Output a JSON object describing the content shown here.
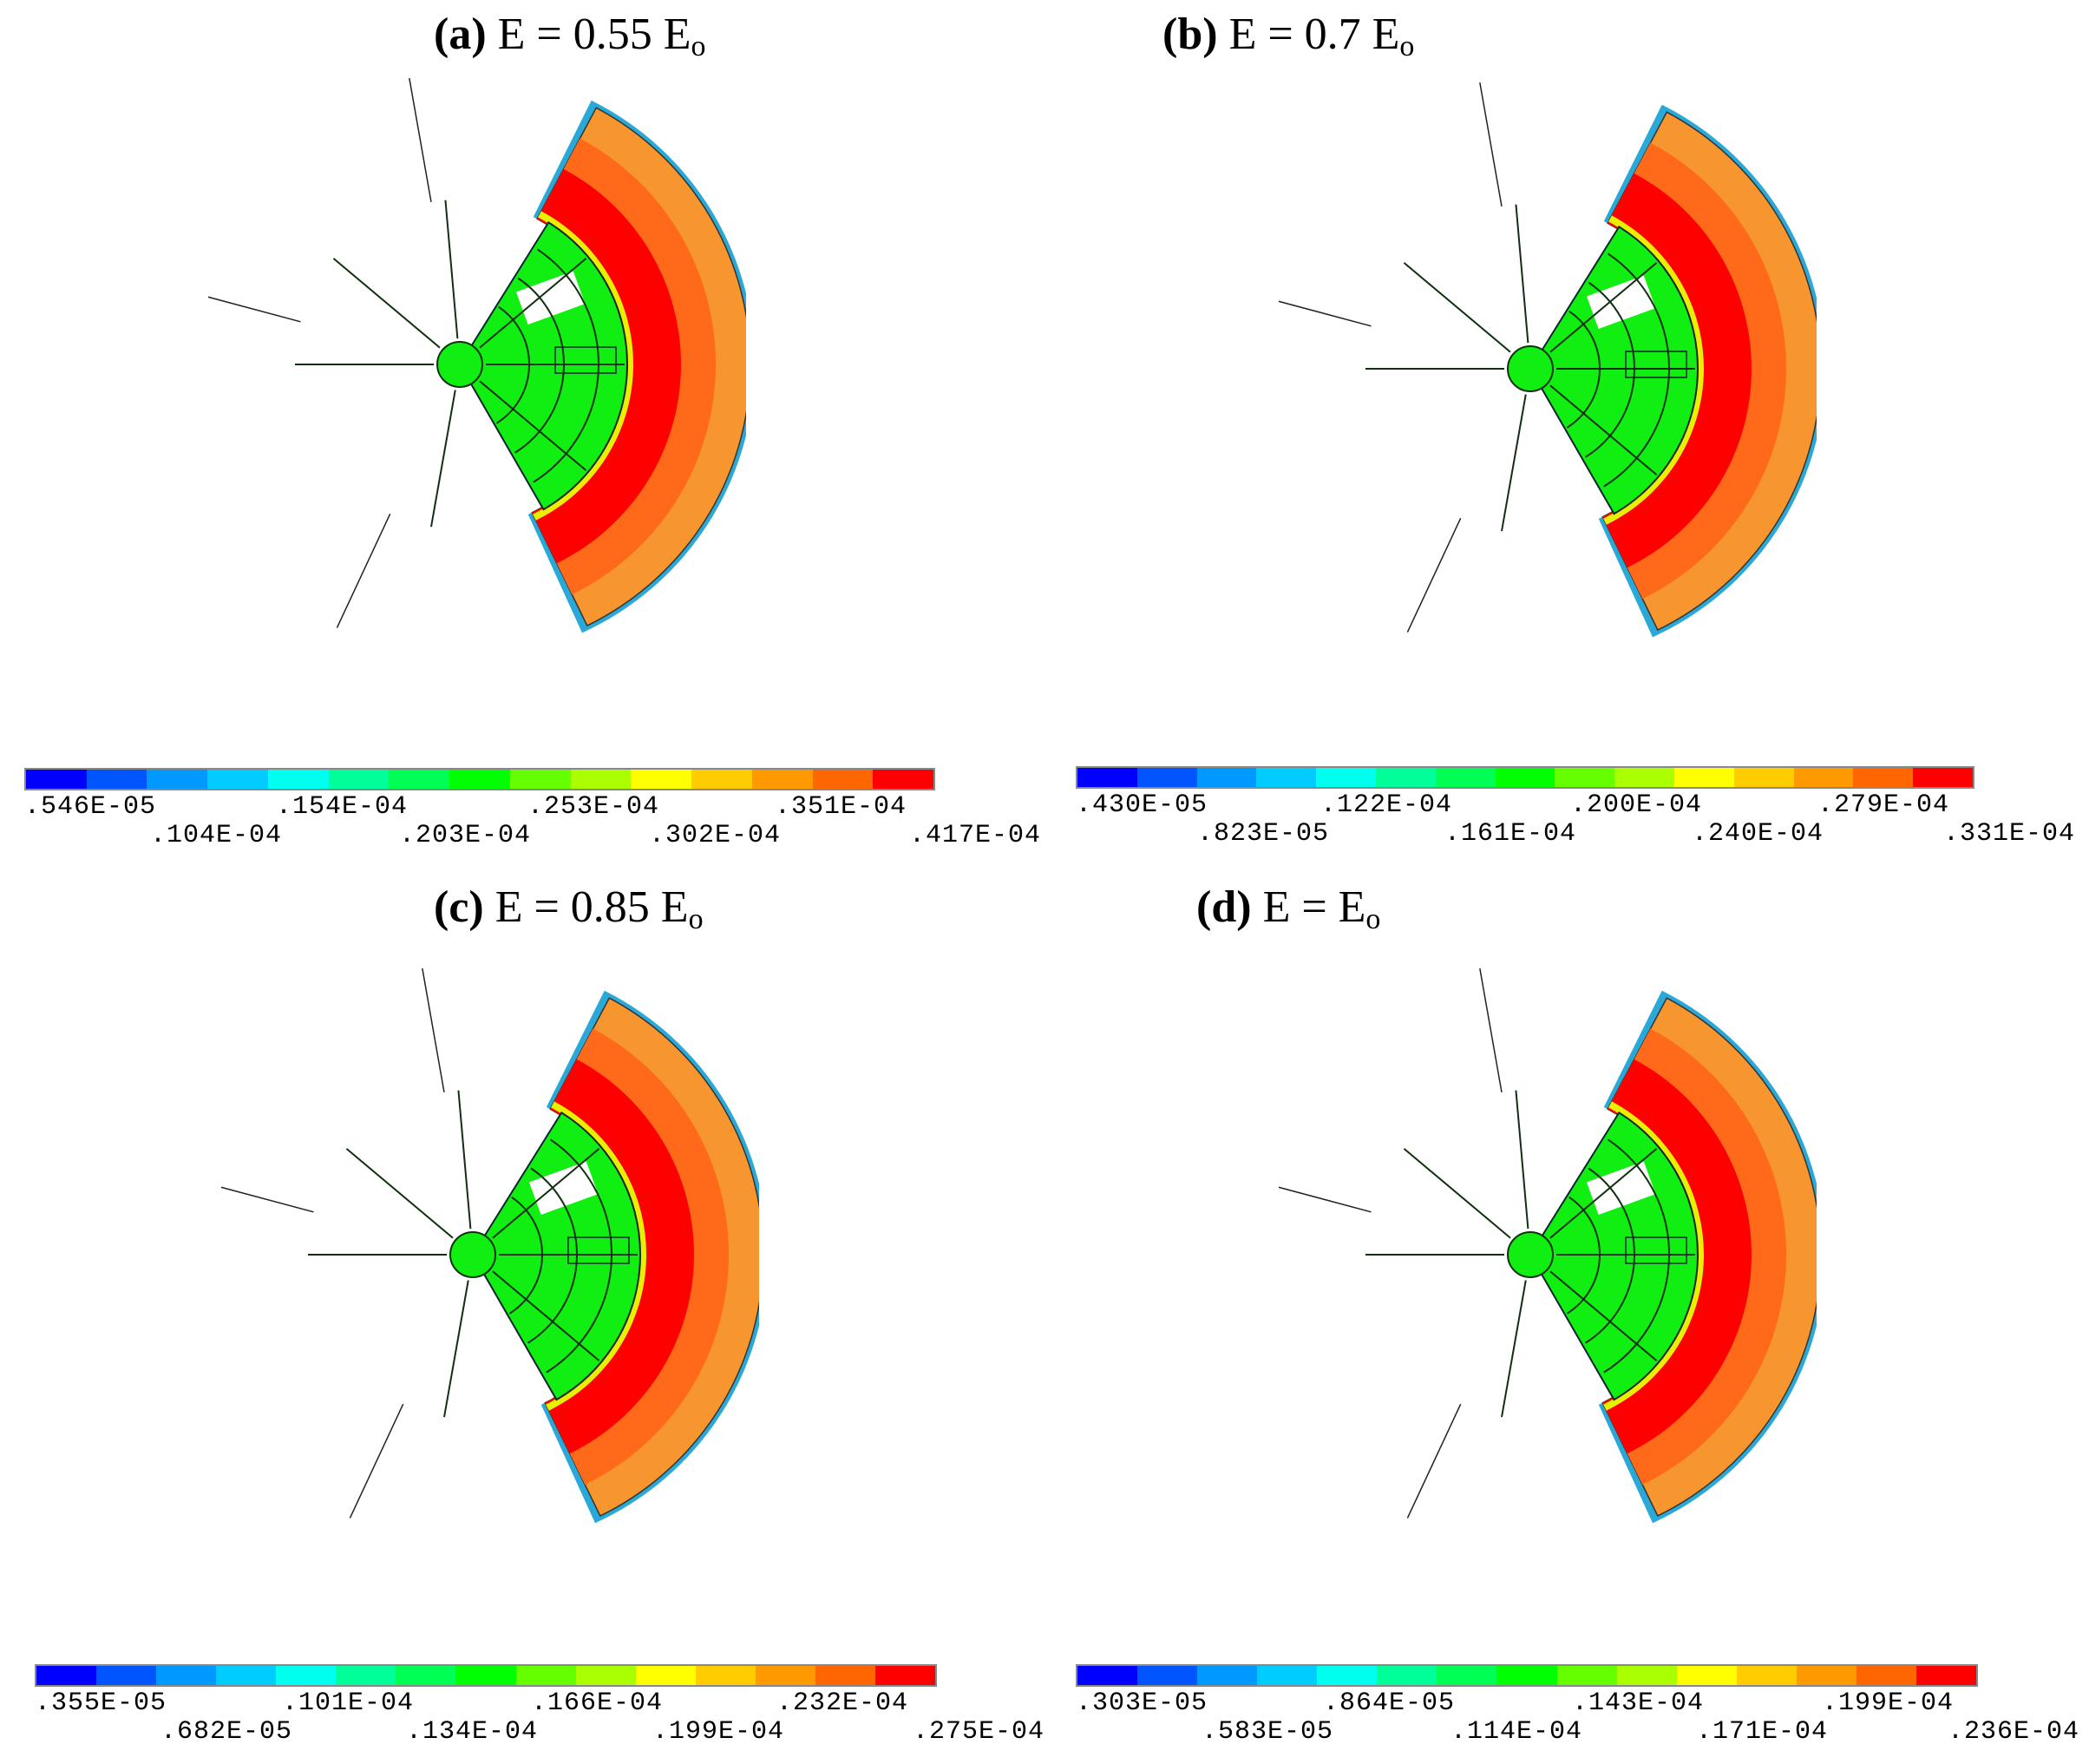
{
  "figure": {
    "panels": [
      {
        "label": "(a)",
        "title": "E = 0.55 E",
        "subscript": "o",
        "colorbar": {
          "top_labels": [
            ".546E-05",
            ".154E-04",
            ".253E-04",
            ".351E-04"
          ],
          "bottom_labels": [
            ".104E-04",
            ".203E-04",
            ".302E-04",
            ".417E-04"
          ]
        }
      },
      {
        "label": "(b)",
        "title": "E = 0.7 E",
        "subscript": "o",
        "colorbar": {
          "top_labels": [
            ".430E-05",
            ".122E-04",
            ".200E-04",
            ".279E-04"
          ],
          "bottom_labels": [
            ".823E-05",
            ".161E-04",
            ".240E-04",
            ".331E-04"
          ]
        }
      },
      {
        "label": "(c)",
        "title": "E = 0.85 E",
        "subscript": "o",
        "colorbar": {
          "top_labels": [
            ".355E-05",
            ".101E-04",
            ".166E-04",
            ".232E-04"
          ],
          "bottom_labels": [
            ".682E-05",
            ".134E-04",
            ".199E-04",
            ".275E-04"
          ]
        }
      },
      {
        "label": "(d)",
        "title": "E = E",
        "subscript": "o",
        "colorbar": {
          "top_labels": [
            ".303E-05",
            ".864E-05",
            ".143E-04",
            ".199E-04"
          ],
          "bottom_labels": [
            ".583E-05",
            ".114E-04",
            ".171E-04",
            ".236E-04"
          ]
        }
      }
    ],
    "colors": {
      "scale": [
        "#0000ff",
        "#0055ff",
        "#0099ff",
        "#00ccff",
        "#00ffee",
        "#00ff99",
        "#00ff55",
        "#00ff00",
        "#66ff00",
        "#aaff00",
        "#ffff00",
        "#ffcc00",
        "#ff9900",
        "#ff6600",
        "#ff0000"
      ],
      "outer_band": "#f7962e",
      "middle_band": "#ff6a1a",
      "inner_band": "#ff0000",
      "core": "#11ee11",
      "rim": "#2aa9d8"
    }
  }
}
